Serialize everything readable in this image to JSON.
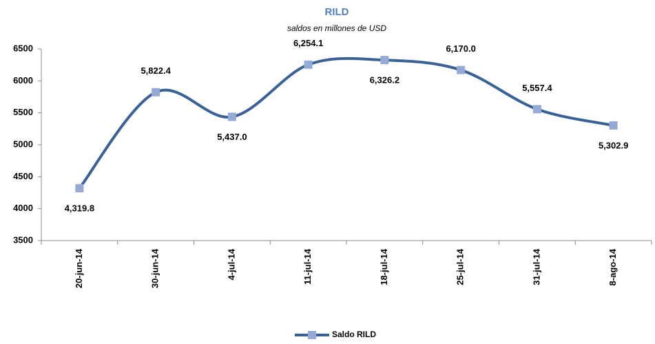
{
  "chart_data": {
    "type": "line",
    "title": "RILD",
    "subtitle": "saldos en millones de USD",
    "categories": [
      "20-jun-14",
      "30-jun-14",
      "4-jul-14",
      "11-jul-14",
      "18-jul-14",
      "25-jul-14",
      "31-jul-14",
      "8-ago-14"
    ],
    "series": [
      {
        "name": "Saldo RILD",
        "color": "#3a6194",
        "marker_color": "#95abd6",
        "values": [
          4319.8,
          5822.4,
          5437.0,
          6254.1,
          6326.2,
          6170.0,
          5557.4,
          5302.9
        ],
        "value_labels": [
          "4,319.8",
          "5,822.4",
          "5,437.0",
          "6,254.1",
          "6,326.2",
          "6,170.0",
          "5,557.4",
          "5,302.9"
        ]
      }
    ],
    "ylim": [
      3500,
      6500
    ],
    "yticks": [
      3500,
      4000,
      4500,
      5000,
      5500,
      6000,
      6500
    ],
    "grid": false,
    "legend": "bottom"
  }
}
